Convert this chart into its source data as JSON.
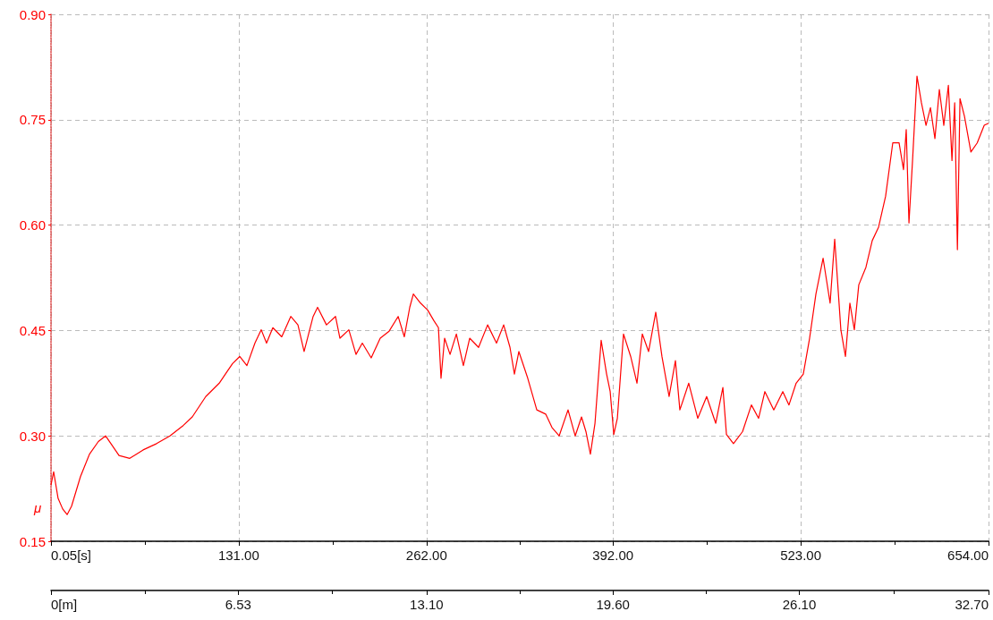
{
  "chart_data": {
    "type": "line",
    "ylabel": "μ",
    "x": [
      0.05,
      1.9,
      5.0,
      8.2,
      11.3,
      14.4,
      20.6,
      26.9,
      33.1,
      38.1,
      42.5,
      47.5,
      55,
      64.3,
      73.7,
      83,
      92.4,
      98.6,
      108,
      117.4,
      126.7,
      131.7,
      136.7,
      142.3,
      146.7,
      150.4,
      154.8,
      161,
      167.3,
      172.3,
      176.6,
      182.9,
      186,
      192.2,
      198.5,
      201.6,
      207.8,
      212.8,
      217.2,
      223.4,
      229.7,
      235.9,
      242.2,
      246.5,
      250.3,
      252.8,
      257.8,
      262.8,
      267.1,
      270.3,
      272.1,
      274.6,
      278.4,
      282.8,
      287.7,
      292.1,
      298.3,
      304.6,
      310.8,
      315.8,
      320.2,
      323.3,
      326.4,
      332.6,
      338.9,
      345.1,
      349.5,
      354.5,
      360.7,
      365.7,
      370.1,
      373.2,
      376.3,
      379.5,
      383.8,
      387.6,
      390.1,
      392.6,
      395.1,
      399.4,
      404.4,
      408.8,
      412.5,
      416.9,
      421.9,
      426.2,
      431.2,
      435.6,
      438.7,
      444.9,
      451.2,
      457.4,
      463.7,
      468.7,
      471.2,
      476.1,
      482.4,
      488.6,
      493.6,
      498.0,
      504.2,
      510.5,
      514.8,
      519.8,
      524.8,
      529.2,
      533.6,
      538.6,
      543.5,
      546.7,
      551.0,
      554.2,
      557.3,
      560.4,
      563.5,
      568.5,
      572.9,
      577.3,
      582.2,
      587.2,
      591.6,
      594.7,
      596.6,
      598.5,
      601.0,
      604.1,
      607.2,
      610.4,
      613.5,
      616.6,
      619.7,
      622.8,
      626.0,
      628.5,
      630.4,
      632.3,
      634.1,
      637.2,
      641.7,
      646.1,
      651.0,
      654
    ],
    "series": [
      {
        "color": "#ff0000",
        "values": [
          0.23,
          0.249,
          0.211,
          0.196,
          0.188,
          0.2,
          0.242,
          0.274,
          0.292,
          0.3,
          0.287,
          0.272,
          0.268,
          0.28,
          0.289,
          0.3,
          0.315,
          0.327,
          0.356,
          0.375,
          0.403,
          0.413,
          0.4,
          0.432,
          0.451,
          0.432,
          0.454,
          0.441,
          0.47,
          0.458,
          0.42,
          0.47,
          0.483,
          0.458,
          0.47,
          0.439,
          0.451,
          0.416,
          0.432,
          0.411,
          0.439,
          0.449,
          0.47,
          0.441,
          0.483,
          0.502,
          0.489,
          0.479,
          0.464,
          0.454,
          0.382,
          0.439,
          0.416,
          0.445,
          0.4,
          0.439,
          0.426,
          0.458,
          0.432,
          0.458,
          0.426,
          0.388,
          0.42,
          0.382,
          0.337,
          0.331,
          0.312,
          0.3,
          0.337,
          0.3,
          0.327,
          0.306,
          0.274,
          0.318,
          0.436,
          0.388,
          0.363,
          0.302,
          0.325,
          0.445,
          0.413,
          0.375,
          0.445,
          0.42,
          0.476,
          0.413,
          0.356,
          0.407,
          0.337,
          0.375,
          0.325,
          0.356,
          0.318,
          0.369,
          0.302,
          0.289,
          0.306,
          0.344,
          0.325,
          0.363,
          0.337,
          0.363,
          0.344,
          0.375,
          0.388,
          0.439,
          0.502,
          0.553,
          0.489,
          0.58,
          0.451,
          0.413,
          0.489,
          0.451,
          0.515,
          0.54,
          0.578,
          0.597,
          0.641,
          0.717,
          0.717,
          0.679,
          0.736,
          0.603,
          0.692,
          0.812,
          0.774,
          0.742,
          0.767,
          0.723,
          0.793,
          0.742,
          0.799,
          0.692,
          0.774,
          0.565,
          0.78,
          0.755,
          0.704,
          0.717,
          0.742,
          0.745
        ]
      }
    ],
    "xlim": [
      0.05,
      654
    ],
    "xticks": [
      {
        "value": 0.05,
        "label": "0.05[s]"
      },
      {
        "value": 65.5,
        "label": null
      },
      {
        "value": 131,
        "label": "131.00"
      },
      {
        "value": 196.5,
        "label": null
      },
      {
        "value": 262,
        "label": "262.00"
      },
      {
        "value": 327,
        "label": null
      },
      {
        "value": 392,
        "label": "392.00"
      },
      {
        "value": 457.5,
        "label": null
      },
      {
        "value": 523,
        "label": "523.00"
      },
      {
        "value": 588.5,
        "label": null
      },
      {
        "value": 654,
        "label": "654.00"
      }
    ],
    "x2lim": [
      0,
      32.7
    ],
    "x2ticks": [
      {
        "value": 0,
        "label": "0[m]"
      },
      {
        "value": 3.27,
        "label": null
      },
      {
        "value": 6.53,
        "label": "6.53"
      },
      {
        "value": 9.82,
        "label": null
      },
      {
        "value": 13.1,
        "label": "13.10"
      },
      {
        "value": 16.35,
        "label": null
      },
      {
        "value": 19.6,
        "label": "19.60"
      },
      {
        "value": 22.85,
        "label": null
      },
      {
        "value": 26.1,
        "label": "26.10"
      },
      {
        "value": 29.4,
        "label": null
      },
      {
        "value": 32.7,
        "label": "32.70"
      }
    ],
    "ylim": [
      0.15,
      0.9
    ],
    "yticks": [
      {
        "value": 0.15,
        "label": "0.15"
      },
      {
        "value": 0.3,
        "label": "0.30"
      },
      {
        "value": 0.45,
        "label": "0.45"
      },
      {
        "value": 0.6,
        "label": "0.60"
      },
      {
        "value": 0.75,
        "label": "0.75"
      },
      {
        "value": 0.9,
        "label": "0.90"
      }
    ],
    "grid": true,
    "marker": "none",
    "line_style": "solid"
  }
}
